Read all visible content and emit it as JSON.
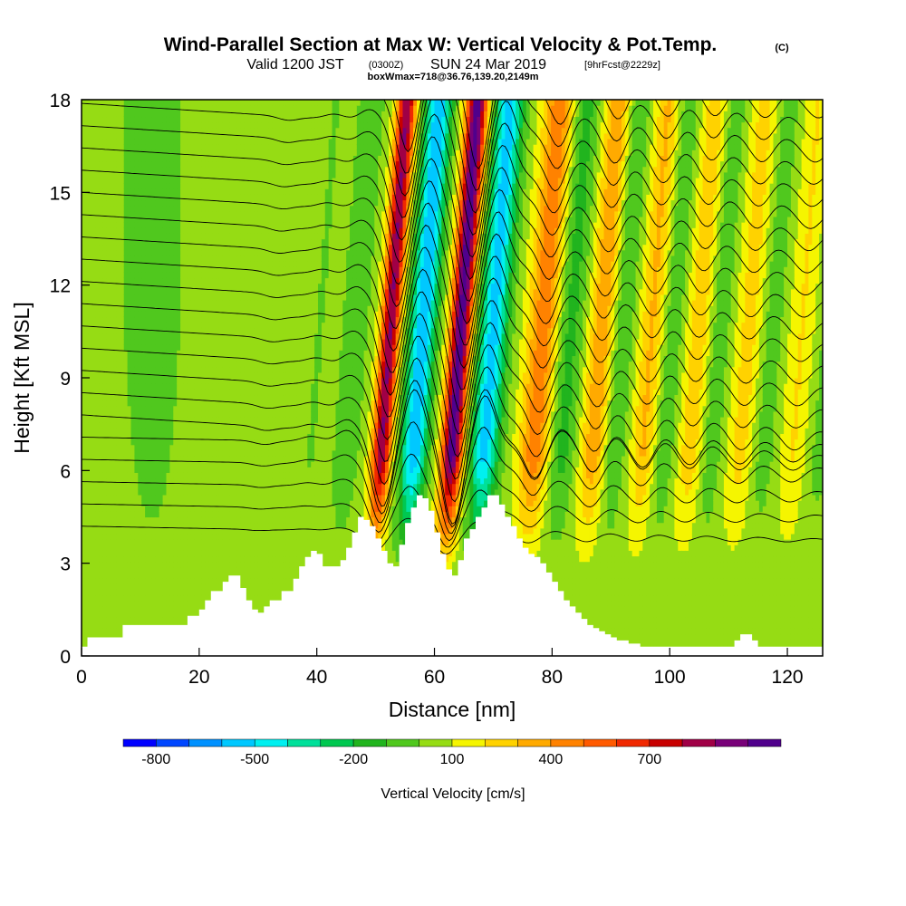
{
  "title": {
    "main": "Wind-Parallel Section at Max W: Vertical Velocity & Pot.Temp.",
    "copyright": "(C)",
    "valid_prefix": "Valid 1200 JST",
    "valid_utc": "(0300Z)",
    "valid_date": "SUN 24 Mar 2019",
    "forecast": "[9hrFcst@2229z]",
    "box_info": "boxWmax=718@36.76,139.20,2149m"
  },
  "colors": {
    "contour": "#000000",
    "terrain": "#ffffff",
    "background": "#ffffff"
  },
  "chart_data": {
    "type": "heatmap",
    "xlabel": "Distance [nm]",
    "ylabel": "Height [Kft MSL]",
    "xlim": [
      0,
      126
    ],
    "ylim": [
      0,
      18
    ],
    "x_ticks": [
      "0",
      "20",
      "40",
      "60",
      "80",
      "100",
      "120"
    ],
    "y_ticks": [
      "0",
      "3",
      "6",
      "9",
      "12",
      "15",
      "18"
    ],
    "grid": false,
    "colorbar": {
      "title": "Vertical Velocity [cm/s]",
      "tick_labels": [
        "-800",
        "-500",
        "-200",
        "100",
        "400",
        "700"
      ],
      "tick_values": [
        -800,
        -500,
        -200,
        100,
        400,
        700
      ],
      "bins": [
        {
          "min": -900,
          "max": -800,
          "color": "#0000ff"
        },
        {
          "min": -800,
          "max": -700,
          "color": "#0046ff"
        },
        {
          "min": -700,
          "max": -600,
          "color": "#0091ff"
        },
        {
          "min": -600,
          "max": -500,
          "color": "#00c8ff"
        },
        {
          "min": -500,
          "max": -400,
          "color": "#00f0f0"
        },
        {
          "min": -400,
          "max": -300,
          "color": "#00e09a"
        },
        {
          "min": -300,
          "max": -200,
          "color": "#00c850"
        },
        {
          "min": -200,
          "max": -100,
          "color": "#21b41e"
        },
        {
          "min": -100,
          "max": 0,
          "color": "#50c81e"
        },
        {
          "min": 0,
          "max": 100,
          "color": "#96dc14"
        },
        {
          "min": 100,
          "max": 200,
          "color": "#f5f500"
        },
        {
          "min": 200,
          "max": 300,
          "color": "#ffd200"
        },
        {
          "min": 300,
          "max": 400,
          "color": "#ffaa00"
        },
        {
          "min": 400,
          "max": 500,
          "color": "#ff8200"
        },
        {
          "min": 500,
          "max": 600,
          "color": "#ff5a00"
        },
        {
          "min": 600,
          "max": 700,
          "color": "#f02800"
        },
        {
          "min": 700,
          "max": 800,
          "color": "#c80000"
        },
        {
          "min": 800,
          "max": 900,
          "color": "#a00046"
        },
        {
          "min": 900,
          "max": 1000,
          "color": "#780078"
        },
        {
          "min": 1000,
          "max": 1100,
          "color": "#50008c"
        }
      ]
    },
    "terrain_profile": {
      "x": [
        0,
        1,
        7,
        12,
        18,
        20,
        21,
        22,
        24,
        25,
        26,
        27,
        28,
        29,
        30,
        31,
        32,
        34,
        36,
        37,
        38,
        39,
        40,
        41,
        42,
        44,
        45,
        46,
        47,
        48,
        49,
        50,
        51,
        52,
        53,
        54,
        55,
        56,
        57,
        58,
        59,
        60,
        61,
        62,
        63,
        64,
        65,
        66,
        67,
        68,
        69,
        70,
        71,
        72,
        73,
        74,
        75,
        76,
        77,
        78,
        79,
        80,
        81,
        82,
        83,
        84,
        85,
        86,
        87,
        88,
        89,
        90,
        91,
        92,
        93,
        94,
        95,
        96,
        97,
        98,
        99,
        100,
        102,
        104,
        106,
        108,
        109,
        110,
        111,
        112,
        113,
        114,
        115,
        117,
        118,
        120,
        122,
        124,
        126
      ],
      "kft": [
        0.3,
        0.6,
        1.0,
        1.0,
        1.3,
        1.5,
        1.8,
        2.1,
        2.4,
        2.6,
        2.6,
        2.2,
        1.8,
        1.5,
        1.4,
        1.6,
        1.8,
        2.1,
        2.5,
        2.9,
        3.2,
        3.4,
        3.3,
        2.9,
        2.9,
        3.1,
        3.5,
        4.0,
        4.5,
        4.4,
        4.2,
        3.8,
        3.4,
        3.0,
        2.9,
        3.6,
        4.3,
        4.8,
        5.2,
        5.1,
        4.7,
        4.0,
        3.3,
        2.8,
        2.6,
        3.1,
        3.8,
        4.1,
        4.5,
        4.8,
        5.2,
        5.2,
        4.9,
        4.5,
        4.2,
        3.8,
        3.5,
        3.3,
        3.2,
        3.0,
        2.7,
        2.4,
        2.1,
        1.8,
        1.6,
        1.4,
        1.2,
        1.0,
        0.9,
        0.8,
        0.7,
        0.6,
        0.5,
        0.5,
        0.4,
        0.4,
        0.3,
        0.3,
        0.3,
        0.3,
        0.3,
        0.3,
        0.3,
        0.3,
        0.3,
        0.3,
        0.3,
        0.3,
        0.5,
        0.7,
        0.7,
        0.5,
        0.3,
        0.3,
        0.3,
        0.3,
        0.3,
        0.3,
        0.3
      ]
    },
    "theta_contour_levels_K": [
      6,
      8,
      10,
      12,
      14,
      16,
      18,
      20,
      22,
      24,
      26,
      28,
      30,
      32,
      34,
      36,
      38,
      40
    ]
  }
}
